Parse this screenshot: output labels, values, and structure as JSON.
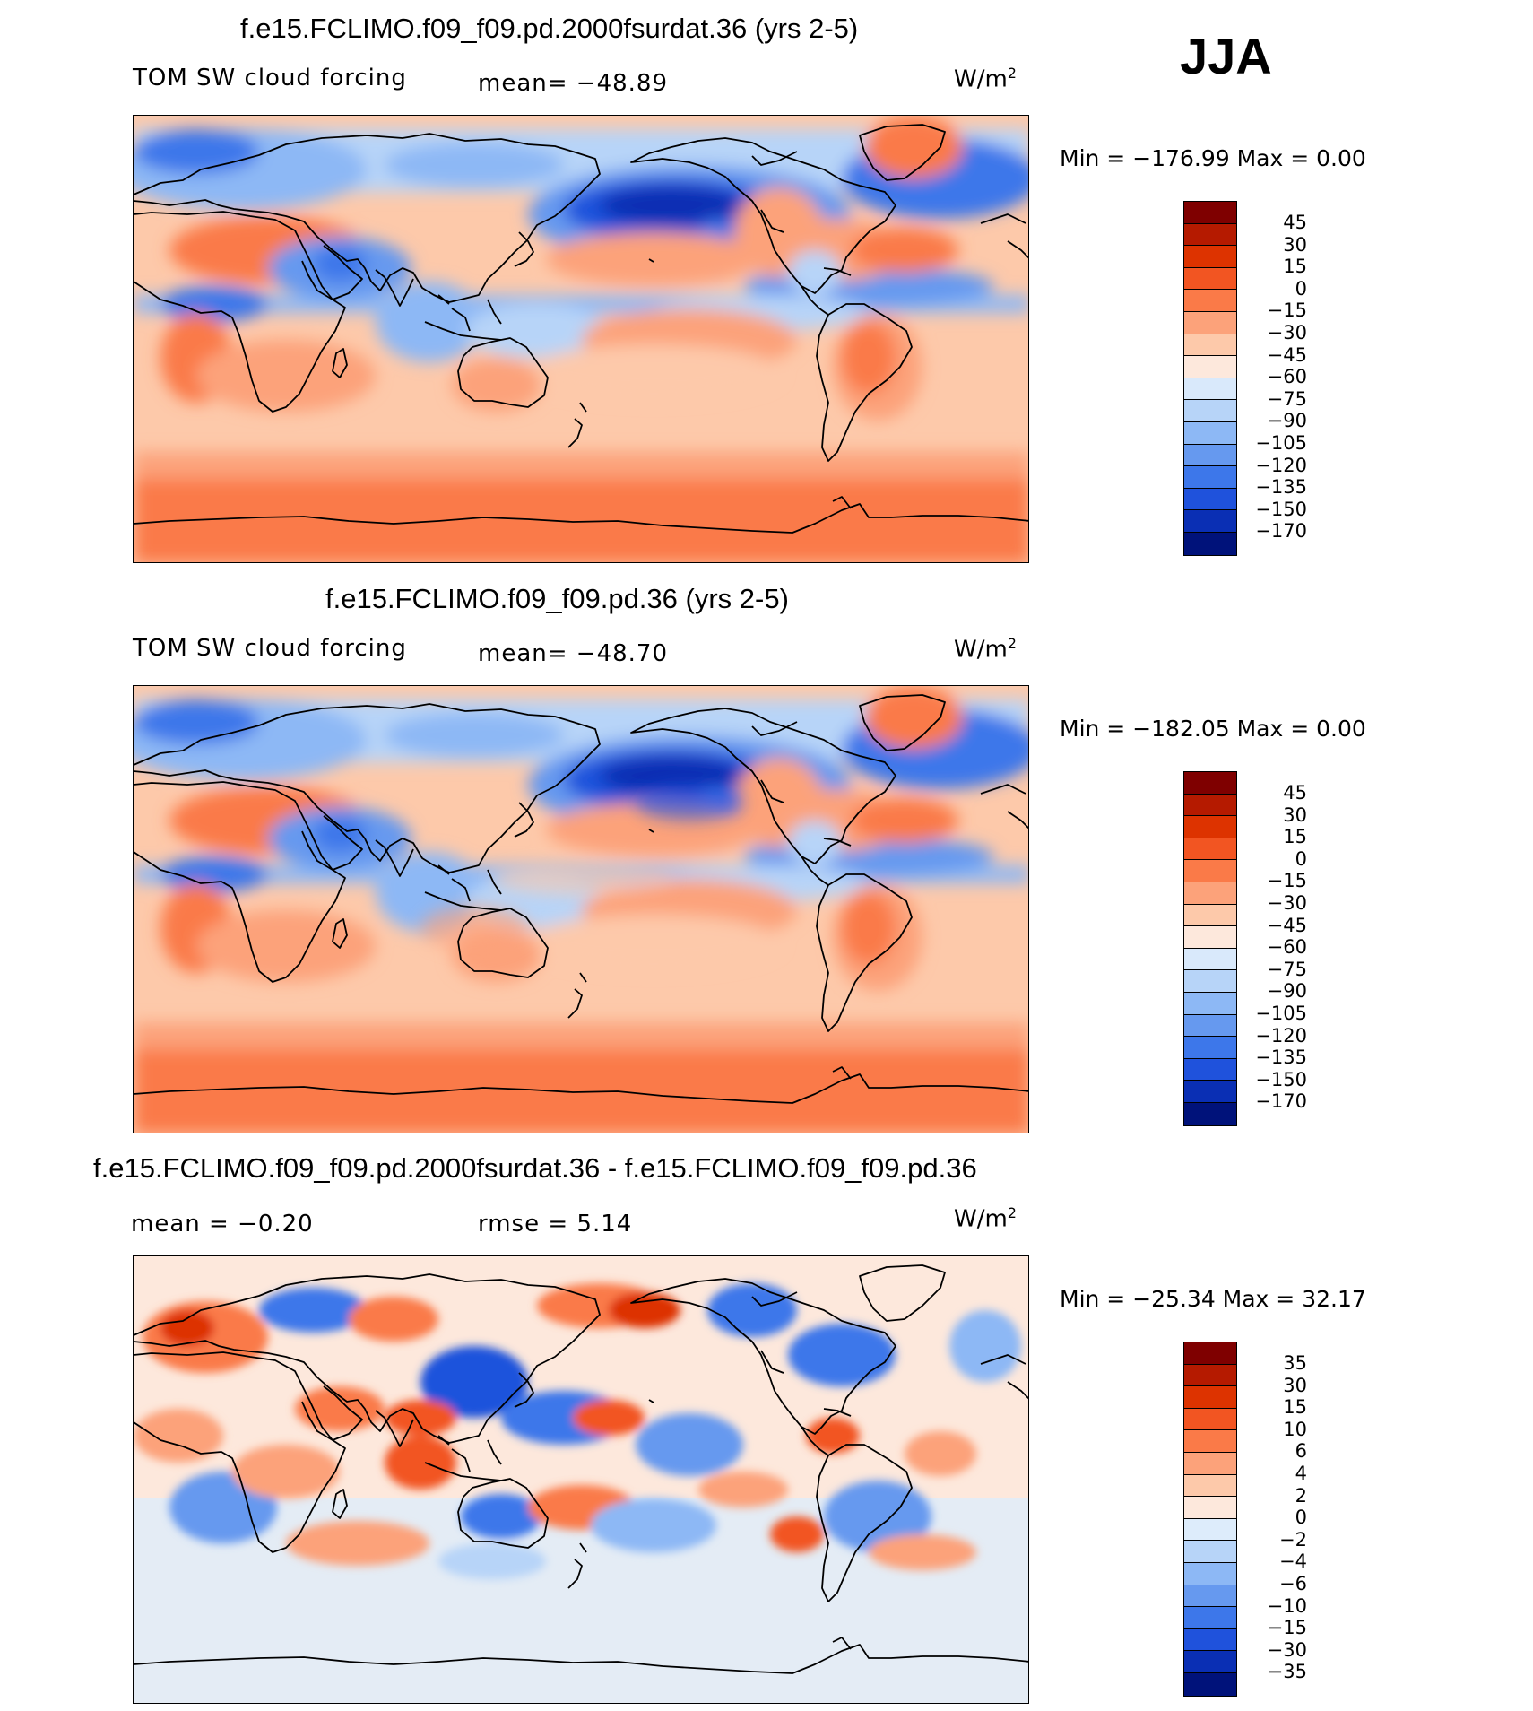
{
  "season": "JJA",
  "panels": [
    {
      "title": "f.e15.FCLIMO.f09_f09.pd.2000fsurdat.36 (yrs 2-5)",
      "variable": "TOM SW cloud forcing",
      "stat1": "mean=  −48.89",
      "stat2": "",
      "units_base": "W/m",
      "units_exp": "2",
      "minmax": "Min  =  −176.99  Max  =      0.00",
      "field": "model"
    },
    {
      "title": "f.e15.FCLIMO.f09_f09.pd.36 (yrs 2-5)",
      "variable": "TOM SW cloud forcing",
      "stat1": "mean=  −48.70",
      "stat2": "",
      "units_base": "W/m",
      "units_exp": "2",
      "minmax": "Min  =  −182.05  Max  =      0.00",
      "field": "model"
    },
    {
      "title": "f.e15.FCLIMO.f09_f09.pd.2000fsurdat.36 - f.e15.FCLIMO.f09_f09.pd.36",
      "variable": "",
      "stat1": "mean  =    −0.20",
      "stat2": "rmse  =     5.14",
      "units_base": "W/m",
      "units_exp": "2",
      "minmax": "Min  =  −25.34  Max  =    32.17",
      "field": "difference"
    }
  ],
  "colorbar_model": {
    "labels": [
      "45",
      "30",
      "15",
      "0",
      "−15",
      "−30",
      "−45",
      "−60",
      "−75",
      "−90",
      "−105",
      "−120",
      "−135",
      "−150",
      "−170"
    ],
    "colors": [
      "#7f0000",
      "#b51a00",
      "#dd3300",
      "#f25522",
      "#fa7a48",
      "#fca27a",
      "#fdc9aa",
      "#fde8dc",
      "#d9e9fb",
      "#b7d4f8",
      "#8db8f5",
      "#6699ef",
      "#3d77ea",
      "#1f52dc",
      "#0a2fb4",
      "#00127a"
    ]
  },
  "colorbar_diff": {
    "labels": [
      "35",
      "30",
      "15",
      "10",
      "6",
      "4",
      "2",
      "0",
      "−2",
      "−4",
      "−6",
      "−10",
      "−15",
      "−30",
      "−35"
    ],
    "colors": [
      "#7f0000",
      "#b51a00",
      "#dd3300",
      "#f25522",
      "#fa7a48",
      "#fca27a",
      "#fdc9aa",
      "#fde8dc",
      "#ddecfb",
      "#b7d4f8",
      "#8db8f5",
      "#6699ef",
      "#3d77ea",
      "#1f52dc",
      "#0a2fb4",
      "#00127a"
    ]
  }
}
